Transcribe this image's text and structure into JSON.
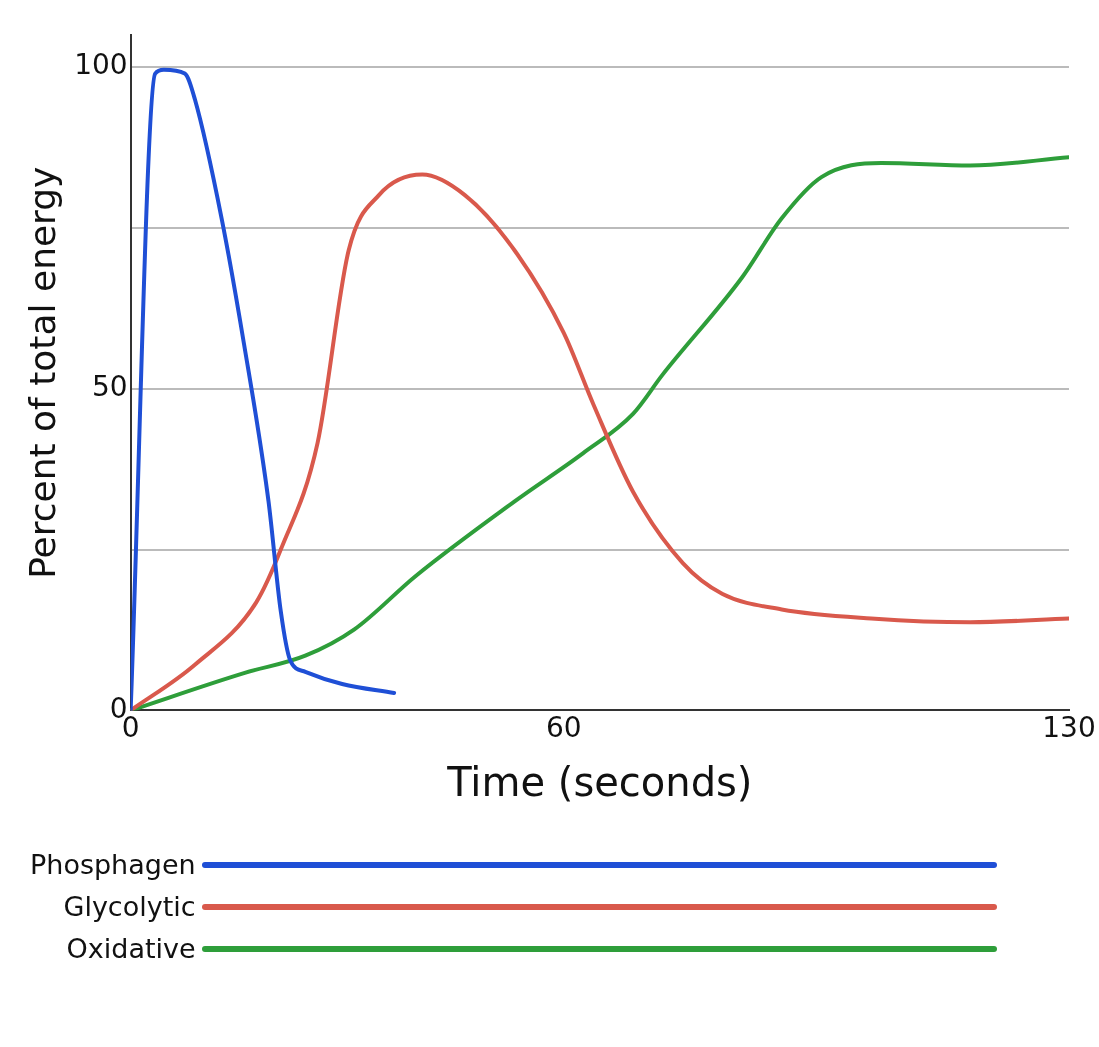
{
  "chart_data": {
    "type": "line",
    "xlabel": "Time (seconds)",
    "ylabel": "Percent of total energy",
    "xlim": [
      0,
      130
    ],
    "xticks": [
      0,
      60,
      130
    ],
    "ylim": [
      0,
      105
    ],
    "yticks": [
      0,
      {
        "value": 25,
        "label": null
      },
      50,
      {
        "value": 75,
        "label": null
      },
      100
    ],
    "grid": "y",
    "legend": "bottom",
    "marker": "none",
    "line_style": "solid",
    "series": [
      {
        "name": "Phosphagen",
        "color": "#1f4fd6",
        "x": [
          0,
          3.4,
          4.6,
          7.5,
          8.9,
          12.6,
          15.7,
          19.1,
          20.8,
          22.1,
          24.2,
          29.3,
          36.5
        ],
        "values": [
          0,
          99,
          99.6,
          99,
          95,
          76.5,
          57,
          32.5,
          15.4,
          7.8,
          6,
          4.1,
          2.7
        ]
      },
      {
        "name": "Glycolytic",
        "color": "#d9594c",
        "x": [
          0,
          8.9,
          17.4,
          20.8,
          25.9,
          30.2,
          34.4,
          40.4,
          46.3,
          53.2,
          60,
          64.1,
          69.6,
          76.5,
          82,
          90.2,
          102.6,
          116.3,
          130
        ],
        "values": [
          0,
          7.1,
          16.8,
          25,
          41.6,
          71.5,
          80.1,
          83.3,
          80.1,
          71.5,
          58.7,
          47.6,
          34,
          22.9,
          18.1,
          15.7,
          14.3,
          13.7,
          14.3
        ]
      },
      {
        "name": "Oxidative",
        "color": "#2e9e3a",
        "x": [
          0,
          15.7,
          24.2,
          31,
          39.5,
          53.2,
          62.7,
          69.6,
          73.7,
          84.7,
          90.2,
          95.7,
          104,
          116.3,
          130
        ],
        "values": [
          0,
          5.8,
          8.5,
          12.6,
          20.9,
          32.5,
          40,
          46.1,
          52.2,
          67.3,
          76.5,
          82.9,
          85.1,
          84.7,
          86
        ]
      }
    ]
  }
}
